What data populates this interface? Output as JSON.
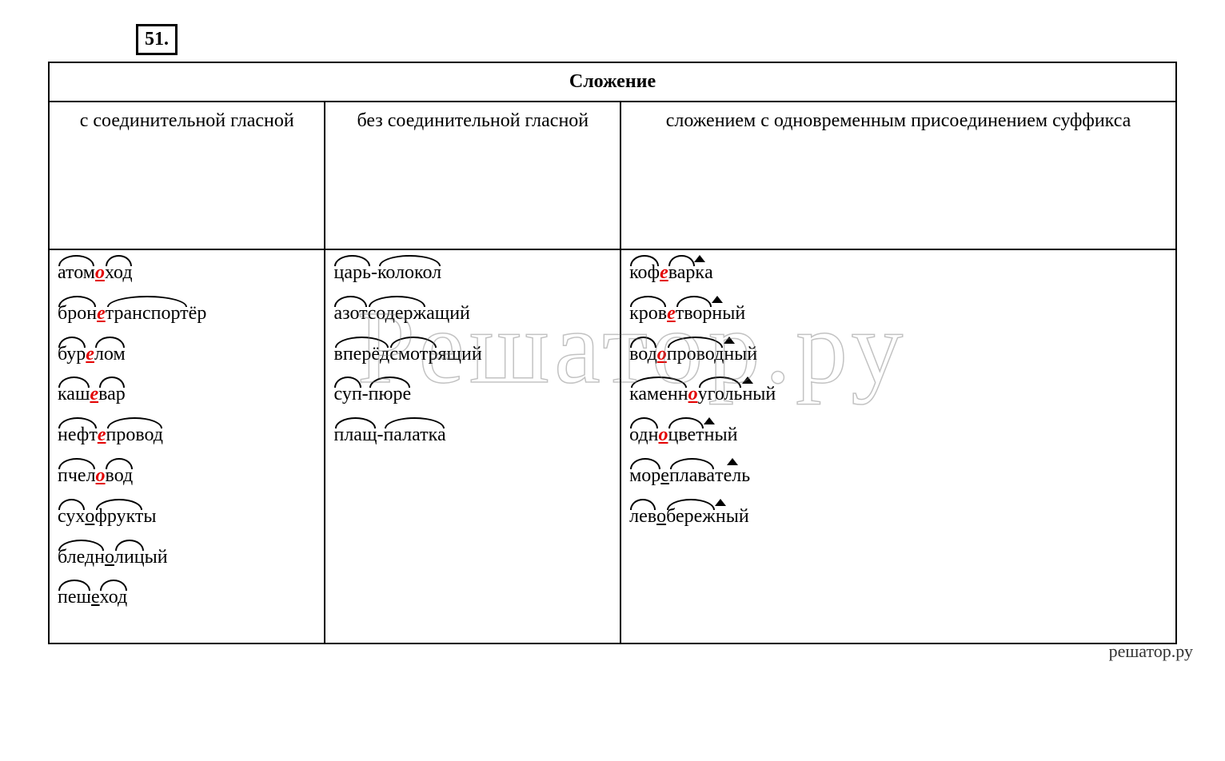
{
  "exercise_number": "51.",
  "table_title": "Сложение",
  "headers": {
    "col1": "с соединительной гласной",
    "col2": "без соединительной гласной",
    "col3": "сложением с одновременным присоединением суффикса"
  },
  "columns": {
    "col1": [
      {
        "parts": [
          {
            "t": "атом",
            "m": "arc"
          },
          {
            "t": "о",
            "m": "conn-red"
          },
          {
            "t": "ход",
            "m": "arc"
          }
        ]
      },
      {
        "parts": [
          {
            "t": "брон",
            "m": "arc"
          },
          {
            "t": "е",
            "m": "conn-red"
          },
          {
            "t": "транспорт",
            "m": "arc"
          },
          {
            "t": "ёр"
          }
        ]
      },
      {
        "parts": [
          {
            "t": "бур",
            "m": "arc"
          },
          {
            "t": "е",
            "m": "conn-red"
          },
          {
            "t": "лом",
            "m": "arc"
          }
        ]
      },
      {
        "parts": [
          {
            "t": "каш",
            "m": "arc"
          },
          {
            "t": "е",
            "m": "conn-red"
          },
          {
            "t": "вар",
            "m": "arc"
          }
        ]
      },
      {
        "parts": [
          {
            "t": "нефт",
            "m": "arc"
          },
          {
            "t": "е",
            "m": "conn-red"
          },
          {
            "t": "провод",
            "m": "arc"
          }
        ]
      },
      {
        "parts": [
          {
            "t": "пчел",
            "m": "arc"
          },
          {
            "t": "о",
            "m": "conn-red"
          },
          {
            "t": "вод",
            "m": "arc"
          }
        ]
      },
      {
        "parts": [
          {
            "t": "сух",
            "m": "arc"
          },
          {
            "t": "о",
            "m": "conn-under"
          },
          {
            "t": "фрукт",
            "m": "arc"
          },
          {
            "t": "ы"
          }
        ]
      },
      {
        "parts": [
          {
            "t": "бледн",
            "m": "arc"
          },
          {
            "t": "о",
            "m": "conn-under"
          },
          {
            "t": "лиц",
            "m": "arc"
          },
          {
            "t": "ый"
          }
        ]
      },
      {
        "parts": [
          {
            "t": "пеш",
            "m": "arc"
          },
          {
            "t": "е",
            "m": "conn-under"
          },
          {
            "t": "ход",
            "m": "arc"
          }
        ]
      }
    ],
    "col2": [
      {
        "parts": [
          {
            "t": "царь",
            "m": "arc"
          },
          {
            "t": "-"
          },
          {
            "t": "колокол",
            "m": "arc"
          }
        ]
      },
      {
        "parts": [
          {
            "t": "азот",
            "m": "arc"
          },
          {
            "t": "содерж",
            "m": "arc"
          },
          {
            "t": "ащий"
          }
        ]
      },
      {
        "parts": [
          {
            "t": "вперёд",
            "m": "arc"
          },
          {
            "t": "смотр",
            "m": "arc"
          },
          {
            "t": "ящий"
          }
        ]
      },
      {
        "parts": [
          {
            "t": "суп",
            "m": "arc"
          },
          {
            "t": "-"
          },
          {
            "t": "пюре",
            "m": "arc"
          }
        ]
      },
      {
        "parts": [
          {
            "t": "плащ",
            "m": "arc"
          },
          {
            "t": "-"
          },
          {
            "t": "палатка",
            "m": "arc"
          }
        ]
      }
    ],
    "col3": [
      {
        "parts": [
          {
            "t": "коф",
            "m": "arc"
          },
          {
            "t": "е",
            "m": "conn-red"
          },
          {
            "t": "вар",
            "m": "arc"
          },
          {
            "t": "к",
            "m": "suf"
          },
          {
            "t": "а"
          }
        ]
      },
      {
        "parts": [
          {
            "t": "кров",
            "m": "arc"
          },
          {
            "t": "е",
            "m": "conn-red"
          },
          {
            "t": "твор",
            "m": "arc"
          },
          {
            "t": "н",
            "m": "suf"
          },
          {
            "t": "ый"
          }
        ]
      },
      {
        "parts": [
          {
            "t": "вод",
            "m": "arc"
          },
          {
            "t": "о",
            "m": "conn-red"
          },
          {
            "t": "провод",
            "m": "arc"
          },
          {
            "t": "н",
            "m": "suf"
          },
          {
            "t": "ый"
          }
        ]
      },
      {
        "parts": [
          {
            "t": "каменн",
            "m": "arc"
          },
          {
            "t": "о",
            "m": "conn-red"
          },
          {
            "t": "уголь",
            "m": "arc"
          },
          {
            "t": "н",
            "m": "suf"
          },
          {
            "t": "ый"
          }
        ]
      },
      {
        "parts": [
          {
            "t": "одн",
            "m": "arc"
          },
          {
            "t": "о",
            "m": "conn-red"
          },
          {
            "t": "цвет",
            "m": "arc"
          },
          {
            "t": "н",
            "m": "suf"
          },
          {
            "t": "ый"
          }
        ]
      },
      {
        "parts": [
          {
            "t": "мор",
            "m": "arc"
          },
          {
            "t": "е",
            "m": "conn-under"
          },
          {
            "t": "плава",
            "m": "arc"
          },
          {
            "t": "тель",
            "m": "suf"
          }
        ]
      },
      {
        "parts": [
          {
            "t": "лев",
            "m": "arc"
          },
          {
            "t": "о",
            "m": "conn-under"
          },
          {
            "t": "береж",
            "m": "arc"
          },
          {
            "t": "н",
            "m": "suf"
          },
          {
            "t": "ый"
          }
        ]
      }
    ]
  },
  "watermark_big": "Решатор.ру",
  "watermark_small": "решатор.ру",
  "styling": {
    "font_family": "Times New Roman",
    "base_fontsize_pt": 18,
    "connector_color": "#e30000",
    "text_color": "#000000",
    "border_color": "#000000",
    "background_color": "#ffffff",
    "arc_stroke_width": 2.5,
    "table_layout": {
      "cols": 3,
      "col_widths_percent": [
        33.3,
        33.4,
        33.3
      ]
    },
    "watermark_outline_color": "rgba(120,120,120,0.45)"
  }
}
